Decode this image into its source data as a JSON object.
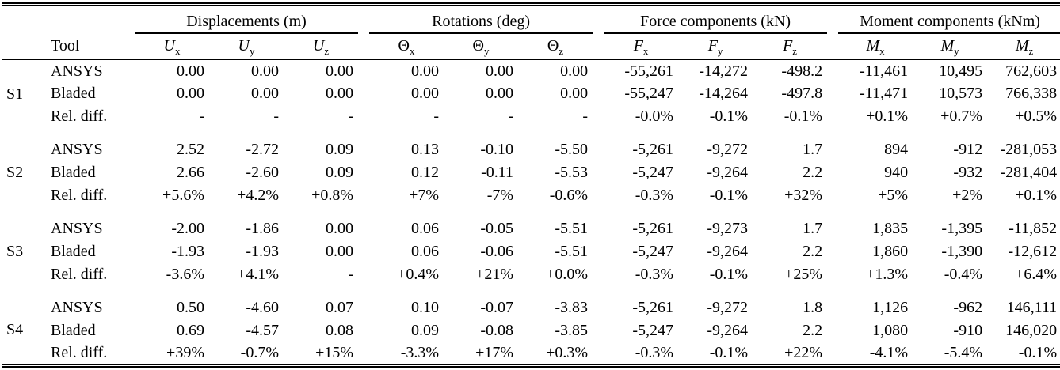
{
  "table": {
    "tool_header": "Tool",
    "groups": [
      {
        "label": "Displacements (m)",
        "columns": [
          {
            "base": "U",
            "sub": "x"
          },
          {
            "base": "U",
            "sub": "y"
          },
          {
            "base": "U",
            "sub": "z"
          }
        ]
      },
      {
        "label": "Rotations (deg)",
        "columns": [
          {
            "base": "Θ",
            "sub": "x"
          },
          {
            "base": "Θ",
            "sub": "y"
          },
          {
            "base": "Θ",
            "sub": "z"
          }
        ]
      },
      {
        "label": "Force components (kN)",
        "columns": [
          {
            "base": "F",
            "sub": "x"
          },
          {
            "base": "F",
            "sub": "y"
          },
          {
            "base": "F",
            "sub": "z"
          }
        ]
      },
      {
        "label": "Moment components (kNm)",
        "columns": [
          {
            "base": "M",
            "sub": "x"
          },
          {
            "base": "M",
            "sub": "y"
          },
          {
            "base": "M",
            "sub": "z"
          }
        ]
      }
    ],
    "sections": [
      {
        "id": "S1",
        "rows": [
          {
            "tool": "ANSYS",
            "values": [
              "0.00",
              "0.00",
              "0.00",
              "0.00",
              "0.00",
              "0.00",
              "-55,261",
              "-14,272",
              "-498.2",
              "-11,461",
              "10,495",
              "762,603"
            ]
          },
          {
            "tool": "Bladed",
            "values": [
              "0.00",
              "0.00",
              "0.00",
              "0.00",
              "0.00",
              "0.00",
              "-55,247",
              "-14,264",
              "-497.8",
              "-11,471",
              "10,573",
              "766,338"
            ]
          },
          {
            "tool": "Rel. diff.",
            "values": [
              "-",
              "-",
              "-",
              "-",
              "-",
              "-",
              "-0.0%",
              "-0.1%",
              "-0.1%",
              "+0.1%",
              "+0.7%",
              "+0.5%"
            ]
          }
        ]
      },
      {
        "id": "S2",
        "rows": [
          {
            "tool": "ANSYS",
            "values": [
              "2.52",
              "-2.72",
              "0.09",
              "0.13",
              "-0.10",
              "-5.50",
              "-5,261",
              "-9,272",
              "1.7",
              "894",
              "-912",
              "-281,053"
            ]
          },
          {
            "tool": "Bladed",
            "values": [
              "2.66",
              "-2.60",
              "0.09",
              "0.12",
              "-0.11",
              "-5.53",
              "-5,247",
              "-9,264",
              "2.2",
              "940",
              "-932",
              "-281,404"
            ]
          },
          {
            "tool": "Rel. diff.",
            "values": [
              "+5.6%",
              "+4.2%",
              "+0.8%",
              "+7%",
              "-7%",
              "-0.6%",
              "-0.3%",
              "-0.1%",
              "+32%",
              "+5%",
              "+2%",
              "+0.1%"
            ]
          }
        ]
      },
      {
        "id": "S3",
        "rows": [
          {
            "tool": "ANSYS",
            "values": [
              "-2.00",
              "-1.86",
              "0.00",
              "0.06",
              "-0.05",
              "-5.51",
              "-5,261",
              "-9,273",
              "1.7",
              "1,835",
              "-1,395",
              "-11,852"
            ]
          },
          {
            "tool": "Bladed",
            "values": [
              "-1.93",
              "-1.93",
              "0.00",
              "0.06",
              "-0.06",
              "-5.51",
              "-5,247",
              "-9,264",
              "2.2",
              "1,860",
              "-1,390",
              "-12,612"
            ]
          },
          {
            "tool": "Rel. diff.",
            "values": [
              "-3.6%",
              "+4.1%",
              "-",
              "+0.4%",
              "+21%",
              "+0.0%",
              "-0.3%",
              "-0.1%",
              "+25%",
              "+1.3%",
              "-0.4%",
              "+6.4%"
            ]
          }
        ]
      },
      {
        "id": "S4",
        "rows": [
          {
            "tool": "ANSYS",
            "values": [
              "0.50",
              "-4.60",
              "0.07",
              "0.10",
              "-0.07",
              "-3.83",
              "-5,261",
              "-9,272",
              "1.8",
              "1,126",
              "-962",
              "146,111"
            ]
          },
          {
            "tool": "Bladed",
            "values": [
              "0.69",
              "-4.57",
              "0.08",
              "0.09",
              "-0.08",
              "-3.85",
              "-5,247",
              "-9,264",
              "2.2",
              "1,080",
              "-910",
              "146,020"
            ]
          },
          {
            "tool": "Rel. diff.",
            "values": [
              "+39%",
              "-0.7%",
              "+15%",
              "-3.3%",
              "+17%",
              "+0.3%",
              "-0.3%",
              "-0.1%",
              "+22%",
              "-4.1%",
              "-5.4%",
              "-0.1%"
            ]
          }
        ]
      }
    ]
  },
  "colors": {
    "text": "#000000",
    "background": "#ffffff",
    "rule": "#000000"
  }
}
